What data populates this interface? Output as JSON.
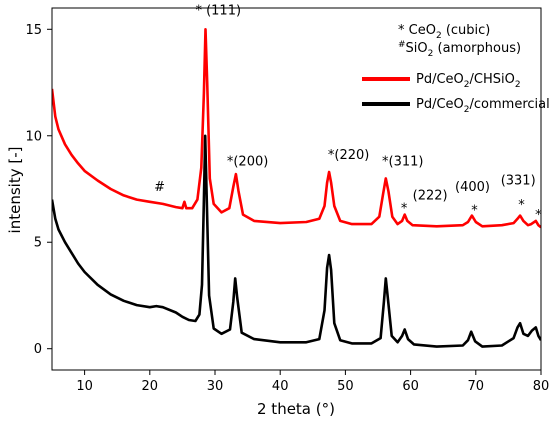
{
  "chart_data": {
    "type": "line",
    "xlabel": "2 theta (°)",
    "ylabel": "intensity [-]",
    "xlim": [
      5,
      80
    ],
    "ylim": [
      -1,
      16
    ],
    "x_ticks": [
      10,
      20,
      30,
      40,
      50,
      60,
      70,
      80
    ],
    "y_ticks": [
      0,
      5,
      10,
      15
    ],
    "grid": false,
    "legend": {
      "placement": "top-right",
      "key_lines": [
        {
          "marker": "*",
          "formula": "CeO",
          "sub": "2",
          "suffix": " (cubic)"
        },
        {
          "marker": "#",
          "formula": "SiO",
          "sub": "2",
          "suffix": " (amorphous)"
        }
      ]
    },
    "series": [
      {
        "name": "Pd/CeO2/CHSiO2",
        "label_parts": [
          "Pd/CeO",
          "2",
          "/CHSiO",
          "2"
        ],
        "color": "#ff0000",
        "points": [
          [
            5,
            12.2
          ],
          [
            5.5,
            10.9
          ],
          [
            6,
            10.3
          ],
          [
            7,
            9.6
          ],
          [
            8,
            9.1
          ],
          [
            9,
            8.7
          ],
          [
            10,
            8.35
          ],
          [
            12,
            7.9
          ],
          [
            14,
            7.5
          ],
          [
            16,
            7.2
          ],
          [
            18,
            7.0
          ],
          [
            20,
            6.9
          ],
          [
            22,
            6.8
          ],
          [
            24,
            6.65
          ],
          [
            25,
            6.6
          ],
          [
            25.3,
            6.9
          ],
          [
            25.6,
            6.6
          ],
          [
            26.5,
            6.6
          ],
          [
            27.3,
            7.0
          ],
          [
            27.9,
            8.5
          ],
          [
            28.3,
            12.0
          ],
          [
            28.55,
            15.0
          ],
          [
            28.8,
            12.5
          ],
          [
            29.2,
            8.0
          ],
          [
            29.8,
            6.8
          ],
          [
            31,
            6.4
          ],
          [
            32.2,
            6.6
          ],
          [
            32.8,
            7.6
          ],
          [
            33.2,
            8.2
          ],
          [
            33.6,
            7.4
          ],
          [
            34.3,
            6.3
          ],
          [
            36,
            6.0
          ],
          [
            40,
            5.9
          ],
          [
            44,
            5.95
          ],
          [
            46,
            6.1
          ],
          [
            46.8,
            6.7
          ],
          [
            47.2,
            7.8
          ],
          [
            47.5,
            8.3
          ],
          [
            47.8,
            7.8
          ],
          [
            48.3,
            6.7
          ],
          [
            49.2,
            6.0
          ],
          [
            51,
            5.85
          ],
          [
            54,
            5.85
          ],
          [
            55.2,
            6.2
          ],
          [
            55.8,
            7.3
          ],
          [
            56.2,
            8.0
          ],
          [
            56.6,
            7.4
          ],
          [
            57.2,
            6.2
          ],
          [
            58,
            5.85
          ],
          [
            58.7,
            6.0
          ],
          [
            59.1,
            6.3
          ],
          [
            59.5,
            6.0
          ],
          [
            60.3,
            5.8
          ],
          [
            64,
            5.75
          ],
          [
            68,
            5.8
          ],
          [
            68.8,
            5.95
          ],
          [
            69.4,
            6.25
          ],
          [
            70,
            5.95
          ],
          [
            71,
            5.75
          ],
          [
            74,
            5.8
          ],
          [
            75.8,
            5.9
          ],
          [
            76.4,
            6.1
          ],
          [
            76.8,
            6.25
          ],
          [
            77.3,
            6.0
          ],
          [
            78,
            5.8
          ],
          [
            78.5,
            5.85
          ],
          [
            79.2,
            6.0
          ],
          [
            79.6,
            5.8
          ],
          [
            80,
            5.7
          ]
        ]
      },
      {
        "name": "Pd/CeO2/commercial",
        "label_parts": [
          "Pd/CeO",
          "2",
          "/commercial"
        ],
        "color": "#000000",
        "points": [
          [
            5,
            7.0
          ],
          [
            5.5,
            6.1
          ],
          [
            6,
            5.6
          ],
          [
            7,
            5.0
          ],
          [
            8,
            4.5
          ],
          [
            9,
            4.0
          ],
          [
            10,
            3.6
          ],
          [
            12,
            3.0
          ],
          [
            14,
            2.55
          ],
          [
            16,
            2.25
          ],
          [
            18,
            2.05
          ],
          [
            20,
            1.95
          ],
          [
            21,
            2.0
          ],
          [
            22,
            1.95
          ],
          [
            24,
            1.7
          ],
          [
            25,
            1.5
          ],
          [
            26,
            1.35
          ],
          [
            27,
            1.3
          ],
          [
            27.6,
            1.6
          ],
          [
            28,
            3.0
          ],
          [
            28.3,
            7.0
          ],
          [
            28.5,
            10.0
          ],
          [
            28.7,
            7.5
          ],
          [
            29.1,
            2.5
          ],
          [
            29.8,
            0.95
          ],
          [
            31,
            0.7
          ],
          [
            32.3,
            0.9
          ],
          [
            32.8,
            2.2
          ],
          [
            33.1,
            3.3
          ],
          [
            33.4,
            2.4
          ],
          [
            34.1,
            0.75
          ],
          [
            36,
            0.45
          ],
          [
            40,
            0.3
          ],
          [
            44,
            0.3
          ],
          [
            46,
            0.45
          ],
          [
            46.8,
            1.8
          ],
          [
            47.2,
            3.8
          ],
          [
            47.5,
            4.4
          ],
          [
            47.8,
            3.7
          ],
          [
            48.3,
            1.2
          ],
          [
            49.2,
            0.4
          ],
          [
            51,
            0.25
          ],
          [
            54,
            0.25
          ],
          [
            55.4,
            0.5
          ],
          [
            55.9,
            2.2
          ],
          [
            56.2,
            3.3
          ],
          [
            56.5,
            2.4
          ],
          [
            57.1,
            0.6
          ],
          [
            58,
            0.3
          ],
          [
            58.7,
            0.6
          ],
          [
            59.1,
            0.9
          ],
          [
            59.6,
            0.45
          ],
          [
            60.5,
            0.2
          ],
          [
            64,
            0.1
          ],
          [
            68,
            0.15
          ],
          [
            68.8,
            0.4
          ],
          [
            69.3,
            0.8
          ],
          [
            69.9,
            0.35
          ],
          [
            71,
            0.1
          ],
          [
            74,
            0.15
          ],
          [
            75.8,
            0.5
          ],
          [
            76.4,
            1.0
          ],
          [
            76.8,
            1.2
          ],
          [
            77.3,
            0.7
          ],
          [
            78,
            0.6
          ],
          [
            78.6,
            0.85
          ],
          [
            79.2,
            1.0
          ],
          [
            79.6,
            0.6
          ],
          [
            80,
            0.4
          ]
        ]
      }
    ],
    "annotations": [
      {
        "text": "#",
        "x": 21.5,
        "y": 7.4
      },
      {
        "text": "* (111)",
        "x": 30.5,
        "y": 15.7
      },
      {
        "text": "*(200)",
        "x": 35.0,
        "y": 8.6
      },
      {
        "text": "*(220)",
        "x": 50.5,
        "y": 8.9
      },
      {
        "text": "*(311)",
        "x": 58.8,
        "y": 8.6
      },
      {
        "text": "*",
        "x": 59.0,
        "y": 6.4
      },
      {
        "text": "(222)",
        "x": 63.0,
        "y": 7.0
      },
      {
        "text": "(400)",
        "x": 69.5,
        "y": 7.4
      },
      {
        "text": "*",
        "x": 69.8,
        "y": 6.3
      },
      {
        "text": "(331)",
        "x": 76.5,
        "y": 7.7
      },
      {
        "text": "*",
        "x": 77.0,
        "y": 6.55
      },
      {
        "text": "*",
        "x": 79.6,
        "y": 6.1
      }
    ]
  }
}
